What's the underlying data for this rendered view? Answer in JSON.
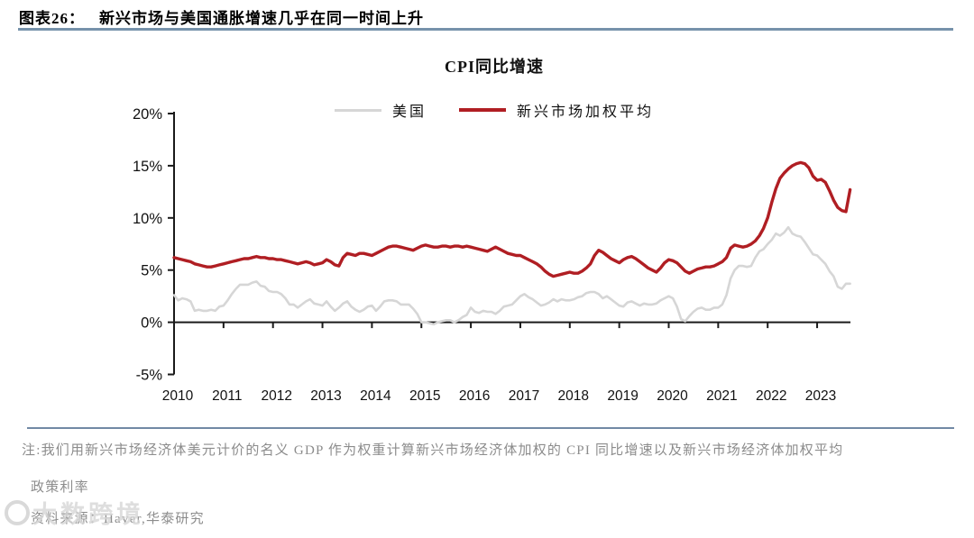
{
  "header": {
    "figure_label": "图表26：",
    "figure_title": "新兴市场与美国通胀增速几乎在同一时间上升"
  },
  "chart_data": {
    "type": "line",
    "title": "CPI同比增速",
    "x_unit": "month",
    "x_start": "2010-01",
    "x_end": "2023-09",
    "x_tick_labels": [
      "2010",
      "2011",
      "2012",
      "2013",
      "2014",
      "2015",
      "2016",
      "2017",
      "2018",
      "2019",
      "2020",
      "2021",
      "2022",
      "2023"
    ],
    "y_ticks": [
      20,
      15,
      10,
      5,
      0,
      -5
    ],
    "y_tick_suffix": "%",
    "ylim": [
      -5,
      20
    ],
    "grid": false,
    "legend_position": "top-center",
    "series": [
      {
        "name": "美国",
        "color": "#d6d6d6",
        "values": [
          2.6,
          2.1,
          2.3,
          2.2,
          2.0,
          1.1,
          1.2,
          1.1,
          1.1,
          1.2,
          1.1,
          1.5,
          1.6,
          2.1,
          2.7,
          3.2,
          3.6,
          3.6,
          3.6,
          3.8,
          3.9,
          3.5,
          3.4,
          3.0,
          2.9,
          2.9,
          2.7,
          2.3,
          1.7,
          1.7,
          1.4,
          1.7,
          2.0,
          2.2,
          1.8,
          1.7,
          1.6,
          2.0,
          1.5,
          1.1,
          1.4,
          1.8,
          2.0,
          1.5,
          1.2,
          1.0,
          1.2,
          1.5,
          1.6,
          1.1,
          1.5,
          2.0,
          2.1,
          2.1,
          2.0,
          1.7,
          1.7,
          1.7,
          1.3,
          0.8,
          0.0,
          0.0,
          -0.1,
          -0.2,
          0.0,
          0.1,
          0.2,
          0.2,
          0.0,
          0.2,
          0.5,
          0.7,
          1.4,
          1.0,
          0.9,
          1.1,
          1.0,
          1.0,
          0.8,
          1.1,
          1.5,
          1.6,
          1.7,
          2.1,
          2.5,
          2.7,
          2.4,
          2.2,
          1.9,
          1.6,
          1.7,
          1.9,
          2.2,
          2.0,
          2.2,
          2.1,
          2.1,
          2.2,
          2.4,
          2.5,
          2.8,
          2.9,
          2.9,
          2.7,
          2.3,
          2.5,
          2.2,
          1.9,
          1.6,
          1.5,
          1.9,
          2.0,
          1.8,
          1.6,
          1.8,
          1.7,
          1.7,
          1.8,
          2.1,
          2.3,
          2.5,
          2.3,
          1.5,
          0.3,
          0.1,
          0.6,
          1.0,
          1.3,
          1.4,
          1.2,
          1.2,
          1.4,
          1.4,
          1.7,
          2.6,
          4.2,
          5.0,
          5.4,
          5.4,
          5.3,
          5.4,
          6.2,
          6.8,
          7.0,
          7.5,
          7.9,
          8.5,
          8.3,
          8.6,
          9.1,
          8.5,
          8.3,
          8.2,
          7.7,
          7.1,
          6.5,
          6.4,
          6.0,
          5.6,
          4.9,
          4.4,
          3.4,
          3.2,
          3.7,
          3.7
        ]
      },
      {
        "name": "新兴市场加权平均",
        "color": "#b01e23",
        "values": [
          6.2,
          6.1,
          6.0,
          5.9,
          5.8,
          5.6,
          5.5,
          5.4,
          5.3,
          5.3,
          5.4,
          5.5,
          5.6,
          5.7,
          5.8,
          5.9,
          6.0,
          6.1,
          6.1,
          6.2,
          6.3,
          6.2,
          6.2,
          6.1,
          6.1,
          6.0,
          6.0,
          5.9,
          5.8,
          5.7,
          5.6,
          5.7,
          5.8,
          5.7,
          5.5,
          5.6,
          5.7,
          6.0,
          5.8,
          5.5,
          5.4,
          6.2,
          6.6,
          6.5,
          6.4,
          6.6,
          6.6,
          6.5,
          6.4,
          6.6,
          6.8,
          7.0,
          7.2,
          7.3,
          7.3,
          7.2,
          7.1,
          7.0,
          6.9,
          7.1,
          7.3,
          7.4,
          7.3,
          7.2,
          7.2,
          7.3,
          7.3,
          7.2,
          7.3,
          7.3,
          7.2,
          7.3,
          7.2,
          7.1,
          7.0,
          6.9,
          6.8,
          7.0,
          7.2,
          7.0,
          6.8,
          6.6,
          6.5,
          6.4,
          6.4,
          6.2,
          6.0,
          5.8,
          5.6,
          5.3,
          4.9,
          4.6,
          4.4,
          4.5,
          4.6,
          4.7,
          4.8,
          4.7,
          4.7,
          4.9,
          5.2,
          5.6,
          6.4,
          6.9,
          6.7,
          6.4,
          6.1,
          5.9,
          5.7,
          6.0,
          6.2,
          6.3,
          6.1,
          5.8,
          5.5,
          5.2,
          5.0,
          4.8,
          5.2,
          5.7,
          6.0,
          5.9,
          5.7,
          5.3,
          4.9,
          4.7,
          4.9,
          5.1,
          5.2,
          5.3,
          5.3,
          5.4,
          5.6,
          5.8,
          6.2,
          7.1,
          7.4,
          7.3,
          7.2,
          7.3,
          7.5,
          7.8,
          8.3,
          9.0,
          10.0,
          11.5,
          12.8,
          13.8,
          14.3,
          14.7,
          15.0,
          15.2,
          15.3,
          15.2,
          14.8,
          14.0,
          13.6,
          13.7,
          13.4,
          12.6,
          11.7,
          11.0,
          10.7,
          10.6,
          12.7
        ]
      }
    ]
  },
  "footer": {
    "note_line1": "注:我们用新兴市场经济体美元计价的名义 GDP 作为权重计算新兴市场经济体加权的 CPI 同比增速以及新兴市场经济体加权平均",
    "note_line2": "政策利率",
    "source": "资料来源：Haver,华泰研究",
    "watermark": "大数跨境"
  },
  "colors": {
    "rule_blue": "#7692ab",
    "axis_black": "#1a1a1a",
    "us_line": "#d6d6d6",
    "em_line": "#b01e23",
    "note_gray": "#8c8c8c"
  }
}
